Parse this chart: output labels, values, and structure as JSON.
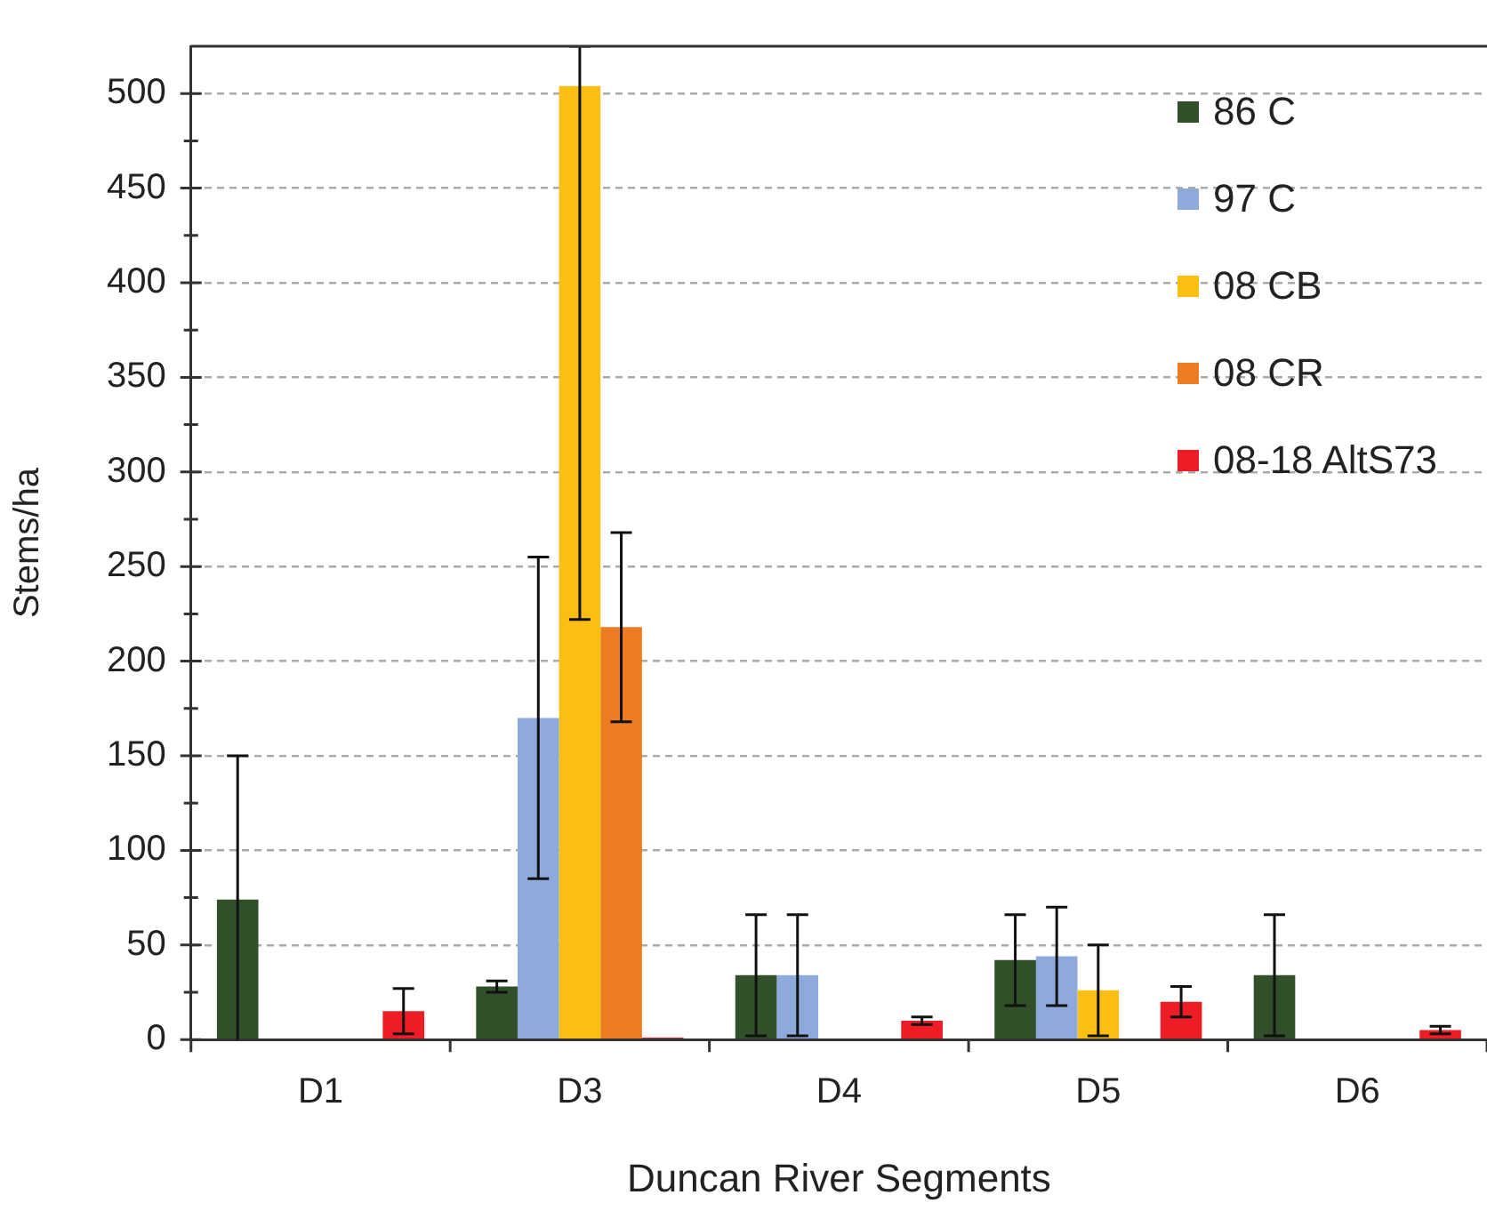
{
  "chart_data": {
    "type": "bar",
    "xlabel": "Duncan River Segments",
    "ylabel": "Stems/ha",
    "categories": [
      "D1",
      "D3",
      "D4",
      "D5",
      "D6"
    ],
    "series": [
      {
        "name": "86 C",
        "color": "#31502a",
        "values": [
          74,
          28,
          34,
          42,
          34
        ],
        "errors": [
          76,
          3,
          32,
          24,
          32
        ]
      },
      {
        "name": "97 C",
        "color": "#8eaadb",
        "values": [
          0,
          170,
          34,
          44,
          0
        ],
        "errors": [
          null,
          85,
          32,
          26,
          null
        ]
      },
      {
        "name": "08 CB",
        "color": "#fbbf14",
        "values": [
          0,
          504,
          0,
          26,
          0
        ],
        "errors": [
          null,
          [
            222,
            525
          ],
          null,
          24,
          null
        ]
      },
      {
        "name": "08 CR",
        "color": "#ed7d22",
        "values": [
          0,
          218,
          0,
          0,
          0
        ],
        "errors": [
          null,
          50,
          null,
          null,
          null
        ]
      },
      {
        "name": "08-18 AltS73",
        "color": "#ee1c25",
        "values": [
          15,
          1,
          10,
          20,
          5
        ],
        "errors": [
          12,
          null,
          2,
          8,
          2
        ]
      }
    ],
    "ylim": [
      0,
      525
    ],
    "yticks": [
      0,
      50,
      100,
      150,
      200,
      250,
      300,
      350,
      400,
      450,
      500
    ],
    "grid": "y",
    "legend": "top right"
  }
}
